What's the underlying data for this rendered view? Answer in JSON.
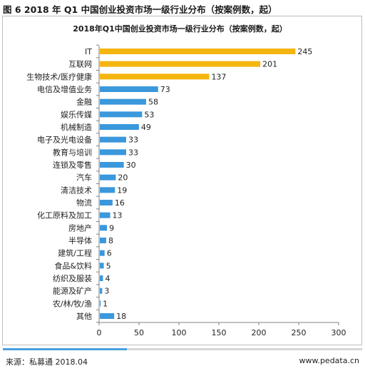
{
  "figure_title": "图 6 2018 年 Q1 中国创业投资市场一级行业分布（按案例数，起）",
  "footer": {
    "source": "来源：私募通 2018.04",
    "url": "www.pedata.cn"
  },
  "colors": {
    "highlight": "#f5b50f",
    "normal": "#3a98dc"
  },
  "chart_data": {
    "type": "bar",
    "orientation": "horizontal",
    "title": "2018年Q1中国创业投资市场一级行业分布（按案例数，起）",
    "categories": [
      "IT",
      "互联网",
      "生物技术/医疗健康",
      "电信及增值业务",
      "金融",
      "娱乐传媒",
      "机械制造",
      "电子及光电设备",
      "教育与培训",
      "连锁及零售",
      "汽车",
      "清洁技术",
      "物流",
      "化工原料及加工",
      "房地产",
      "半导体",
      "建筑/工程",
      "食品&饮料",
      "纺织及服装",
      "能源及矿产",
      "农/林/牧/渔",
      "其他"
    ],
    "values": [
      245,
      201,
      137,
      73,
      58,
      53,
      49,
      33,
      33,
      30,
      20,
      19,
      16,
      13,
      9,
      8,
      6,
      5,
      4,
      3,
      1,
      18
    ],
    "highlight_top": 3,
    "xlim": [
      0,
      300
    ],
    "xticks": [
      0,
      50,
      100,
      150,
      200,
      250,
      300
    ],
    "grid": false,
    "legend": "none"
  }
}
